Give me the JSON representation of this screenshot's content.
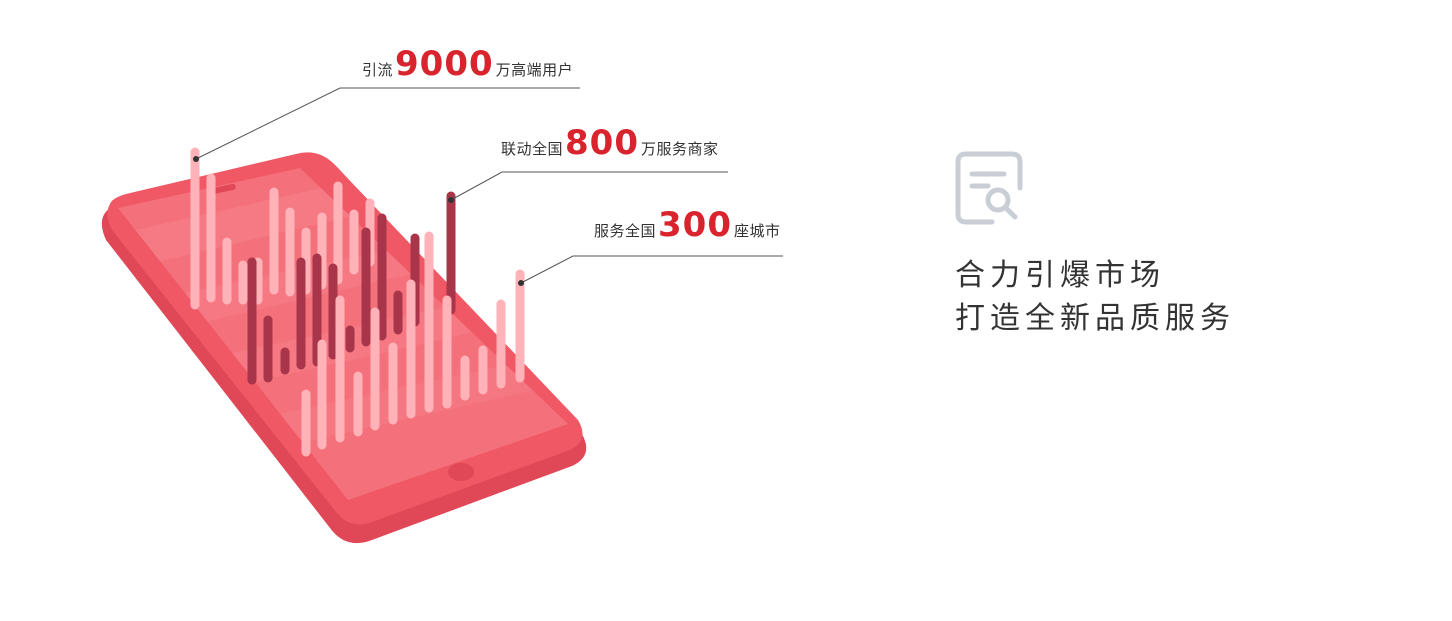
{
  "callouts": [
    {
      "prefix": "引流",
      "number": "9000",
      "suffix": "万高端用户"
    },
    {
      "prefix": "联动全国",
      "number": "800",
      "suffix": "万服务商家"
    },
    {
      "prefix": "服务全国",
      "number": "300",
      "suffix": "座城市"
    }
  ],
  "slogan": {
    "line1": "合力引爆市场",
    "line2": "打造全新品质服务"
  },
  "icons": {
    "illustration": "phone-bar-chart-illustration",
    "document": "document-search-icon"
  },
  "colors": {
    "accent_red": "#d9232d",
    "phone_red": "#ef5864",
    "bar_light": "#ffb3b8",
    "bar_dark": "#a8354a",
    "icon_gray": "#c9ced6",
    "text": "#333333"
  }
}
